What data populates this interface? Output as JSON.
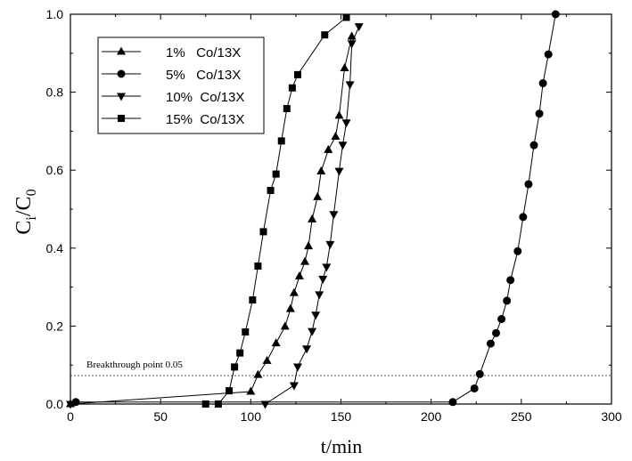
{
  "chart_data": {
    "type": "scatter",
    "xlabel": "t/min",
    "ylabel": {
      "main": "C",
      "sub_i": "i",
      "slash": "/C",
      "sub_0": "0"
    },
    "xlim": [
      0,
      300
    ],
    "ylim": [
      0,
      1.0
    ],
    "xticks": [
      0,
      50,
      100,
      150,
      200,
      250,
      300
    ],
    "yticks": [
      0.0,
      0.2,
      0.4,
      0.6,
      0.8,
      1.0
    ],
    "xtick_labels": [
      "0",
      "50",
      "100",
      "150",
      "200",
      "250",
      "300"
    ],
    "ytick_labels": [
      "0.0",
      "0.2",
      "0.4",
      "0.6",
      "0.8",
      "1.0"
    ],
    "grid": false,
    "legend_position": "top-left",
    "annotation": {
      "text": "Breakthrough point 0.05",
      "y": 0.073
    },
    "series": [
      {
        "name": "1%   Co/13X",
        "marker": "triangle-up",
        "points": [
          [
            0,
            0.0
          ],
          [
            100,
            0.032
          ],
          [
            104,
            0.075
          ],
          [
            109,
            0.111
          ],
          [
            114,
            0.156
          ],
          [
            119,
            0.199
          ],
          [
            122,
            0.244
          ],
          [
            124,
            0.285
          ],
          [
            127,
            0.328
          ],
          [
            130,
            0.365
          ],
          [
            132,
            0.405
          ],
          [
            134,
            0.474
          ],
          [
            137,
            0.531
          ],
          [
            139,
            0.597
          ],
          [
            143,
            0.652
          ],
          [
            147,
            0.686
          ],
          [
            149,
            0.74
          ],
          [
            152,
            0.862
          ],
          [
            156,
            0.943
          ]
        ]
      },
      {
        "name": "5%   Co/13X",
        "marker": "circle",
        "points": [
          [
            3,
            0.005
          ],
          [
            212,
            0.005
          ],
          [
            224,
            0.04
          ],
          [
            227,
            0.077
          ],
          [
            233,
            0.155
          ],
          [
            236,
            0.182
          ],
          [
            239,
            0.218
          ],
          [
            242,
            0.265
          ],
          [
            244,
            0.318
          ],
          [
            248,
            0.392
          ],
          [
            251,
            0.48
          ],
          [
            254,
            0.564
          ],
          [
            257,
            0.664
          ],
          [
            260,
            0.745
          ],
          [
            262,
            0.823
          ],
          [
            265,
            0.897
          ],
          [
            269,
            1.0
          ]
        ]
      },
      {
        "name": "10%  Co/13X",
        "marker": "triangle-down",
        "points": [
          [
            0,
            0.0
          ],
          [
            108,
            0.0
          ],
          [
            124,
            0.048
          ],
          [
            126,
            0.096
          ],
          [
            131,
            0.142
          ],
          [
            134,
            0.187
          ],
          [
            136,
            0.229
          ],
          [
            138,
            0.281
          ],
          [
            140,
            0.321
          ],
          [
            142,
            0.352
          ],
          [
            144,
            0.41
          ],
          [
            146,
            0.487
          ],
          [
            149,
            0.598
          ],
          [
            151,
            0.665
          ],
          [
            153,
            0.722
          ],
          [
            155,
            0.82
          ],
          [
            156,
            0.925
          ],
          [
            160,
            0.969
          ]
        ]
      },
      {
        "name": "15%  Co/13X",
        "marker": "square",
        "points": [
          [
            75,
            0.0
          ],
          [
            82,
            0.0
          ],
          [
            88,
            0.034
          ],
          [
            91,
            0.095
          ],
          [
            94,
            0.131
          ],
          [
            97,
            0.185
          ],
          [
            101,
            0.267
          ],
          [
            104,
            0.354
          ],
          [
            107,
            0.442
          ],
          [
            111,
            0.548
          ],
          [
            114,
            0.59
          ],
          [
            117,
            0.675
          ],
          [
            120,
            0.758
          ],
          [
            123,
            0.811
          ],
          [
            126,
            0.845
          ],
          [
            141,
            0.947
          ],
          [
            153,
            0.992
          ]
        ]
      }
    ]
  }
}
